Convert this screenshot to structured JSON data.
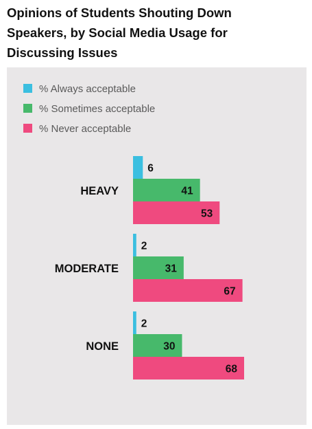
{
  "title_lines": [
    "Opinions of Students Shouting Down",
    "Speakers, by Social Media Usage for",
    "Discussing Issues"
  ],
  "chart_data": {
    "type": "bar",
    "orientation": "horizontal",
    "title": "Opinions of Students Shouting Down Speakers, by Social Media Usage for Discussing Issues",
    "categories": [
      "HEAVY",
      "MODERATE",
      "NONE"
    ],
    "series": [
      {
        "name": "% Always acceptable",
        "color": "#3bbfe0",
        "values": [
          6,
          2,
          2
        ]
      },
      {
        "name": "% Sometimes acceptable",
        "color": "#47b96b",
        "values": [
          41,
          31,
          30
        ]
      },
      {
        "name": "% Never acceptable",
        "color": "#ef4a7f",
        "values": [
          53,
          67,
          68
        ]
      }
    ],
    "xlim": [
      0,
      100
    ],
    "grid": false,
    "legend": "top-left"
  }
}
